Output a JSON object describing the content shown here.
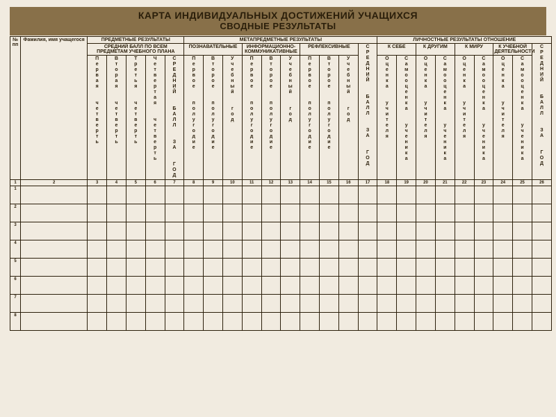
{
  "title": {
    "line1": "КАРТА ИНДИВИДУАЛЬНЫХ ДОСТИЖЕНИЙ УЧАЩИХСЯ",
    "line2": "СВОДНЫЕ РЕЗУЛЬТАТЫ"
  },
  "headers": {
    "npp": "№ пп",
    "name": "Фамилия, имя учащегося",
    "group_subject": "ПРЕДМЕТНЫЕ РЕЗУЛЬТАТЫ",
    "group_meta": "МЕТАПРЕДМЕТНЫЕ РЕЗУЛЬТАТЫ",
    "group_personal": "ЛИЧНОСТНЫЕ РЕЗУЛЬТАТЫ ОТНОШЕНИЕ",
    "subj_avg": "СРЕДНИЙ БАЛЛ ПО ВСЕМ ПРЕДМЕТАМ УЧЕБНОГО ПЛАНА",
    "meta_cognitive": "ПОЗНАВАТЕЛЬНЫЕ",
    "meta_infcomm": "ИНФОРМАЦИОННО-КОММУНИКАТИВНЫЕ",
    "meta_reflex": "РЕФЛЕКСИВНЫЕ",
    "pers_self": "К СЕБЕ",
    "pers_others": "К ДРУГИМ",
    "pers_world": "К МИРУ",
    "pers_study": "К УЧЕБНОЙ ДЕЯТЕЛЬНОСТИ",
    "avg_year_v": "СРЕДНИЙ БАЛЛ ЗА ГОД",
    "q1": "Первая четверть",
    "q2": "Вторая четверть",
    "q3": "Третья четверть",
    "q4": "Четвертая четверть",
    "subj_avg_year": "СРЕДНИЙ БАЛЛ ЗА ГОД",
    "half1": "Первое полугодие",
    "half2": "Второе полугодие",
    "year": "Учебный год",
    "teacher_mark": "Оценка учителя",
    "self_mark": "Самооценка ученика"
  },
  "numrow": [
    "1",
    "2",
    "3",
    "4",
    "5",
    "6",
    "7",
    "8",
    "9",
    "10",
    "11",
    "12",
    "13",
    "14",
    "15",
    "16",
    "17",
    "18",
    "19",
    "20",
    "21",
    "22",
    "23",
    "24",
    "25",
    "26"
  ],
  "rows": [
    "1",
    "2",
    "3",
    "4",
    "5",
    "6",
    "7",
    "8"
  ],
  "colors": {
    "background": "#f1ebe0",
    "title_bg": "#887049",
    "border": "#2a1e0a",
    "text": "#2a1e0a"
  },
  "fonts": {
    "title": 14,
    "subtitle": 13,
    "header": 7,
    "vertical": 7,
    "numrow": 6
  }
}
